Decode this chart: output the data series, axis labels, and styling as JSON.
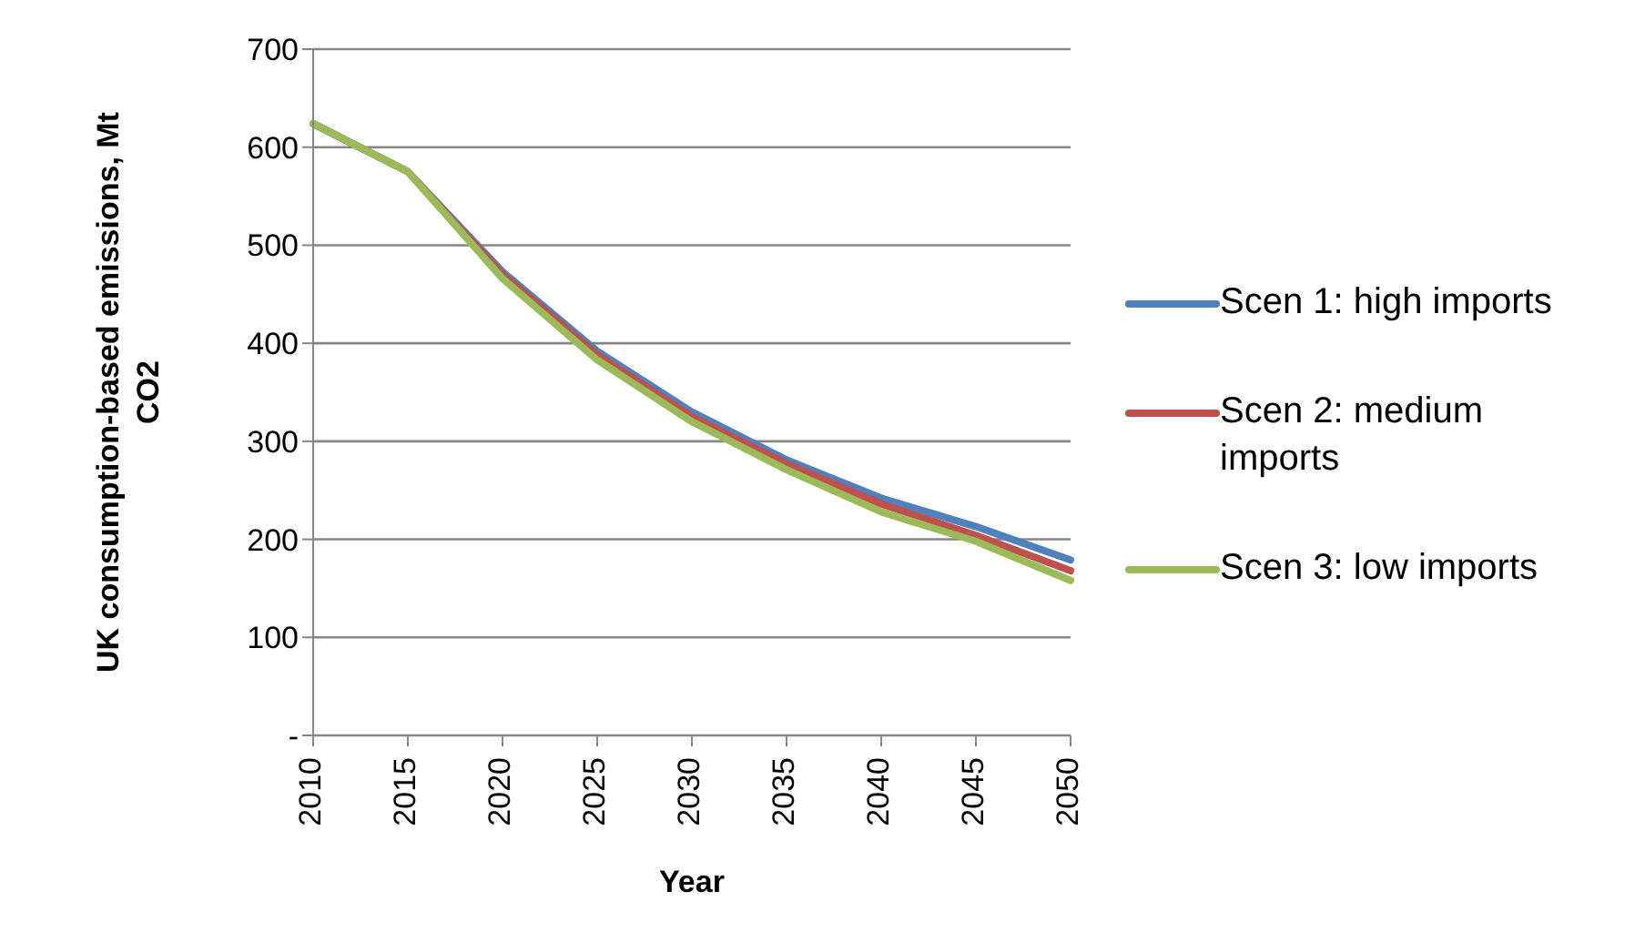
{
  "chart_data": {
    "type": "line",
    "xlabel": "Year",
    "ylabel": "UK consumption-based emissions, Mt CO2",
    "categories": [
      "2010",
      "2015",
      "2020",
      "2025",
      "2030",
      "2035",
      "2040",
      "2045",
      "2050"
    ],
    "series": [
      {
        "name": "Scen 1: high imports",
        "color": "#4f81bd",
        "values": [
          624,
          575,
          473,
          392,
          330,
          281,
          242,
          213,
          179
        ]
      },
      {
        "name": "Scen 2: medium imports",
        "color": "#c0504d",
        "values": [
          624,
          575,
          470,
          388,
          325,
          277,
          236,
          204,
          168
        ]
      },
      {
        "name": "Scen 3: low imports",
        "color": "#9bbb59",
        "values": [
          624,
          575,
          466,
          383,
          320,
          271,
          228,
          198,
          158
        ]
      }
    ],
    "ylim": [
      0,
      700
    ],
    "yticks": [
      {
        "value": 0,
        "label": "-"
      },
      100,
      200,
      300,
      400,
      500,
      600,
      700
    ],
    "grid": "y",
    "legend": "right",
    "marker": "none",
    "line_style": "solid"
  }
}
